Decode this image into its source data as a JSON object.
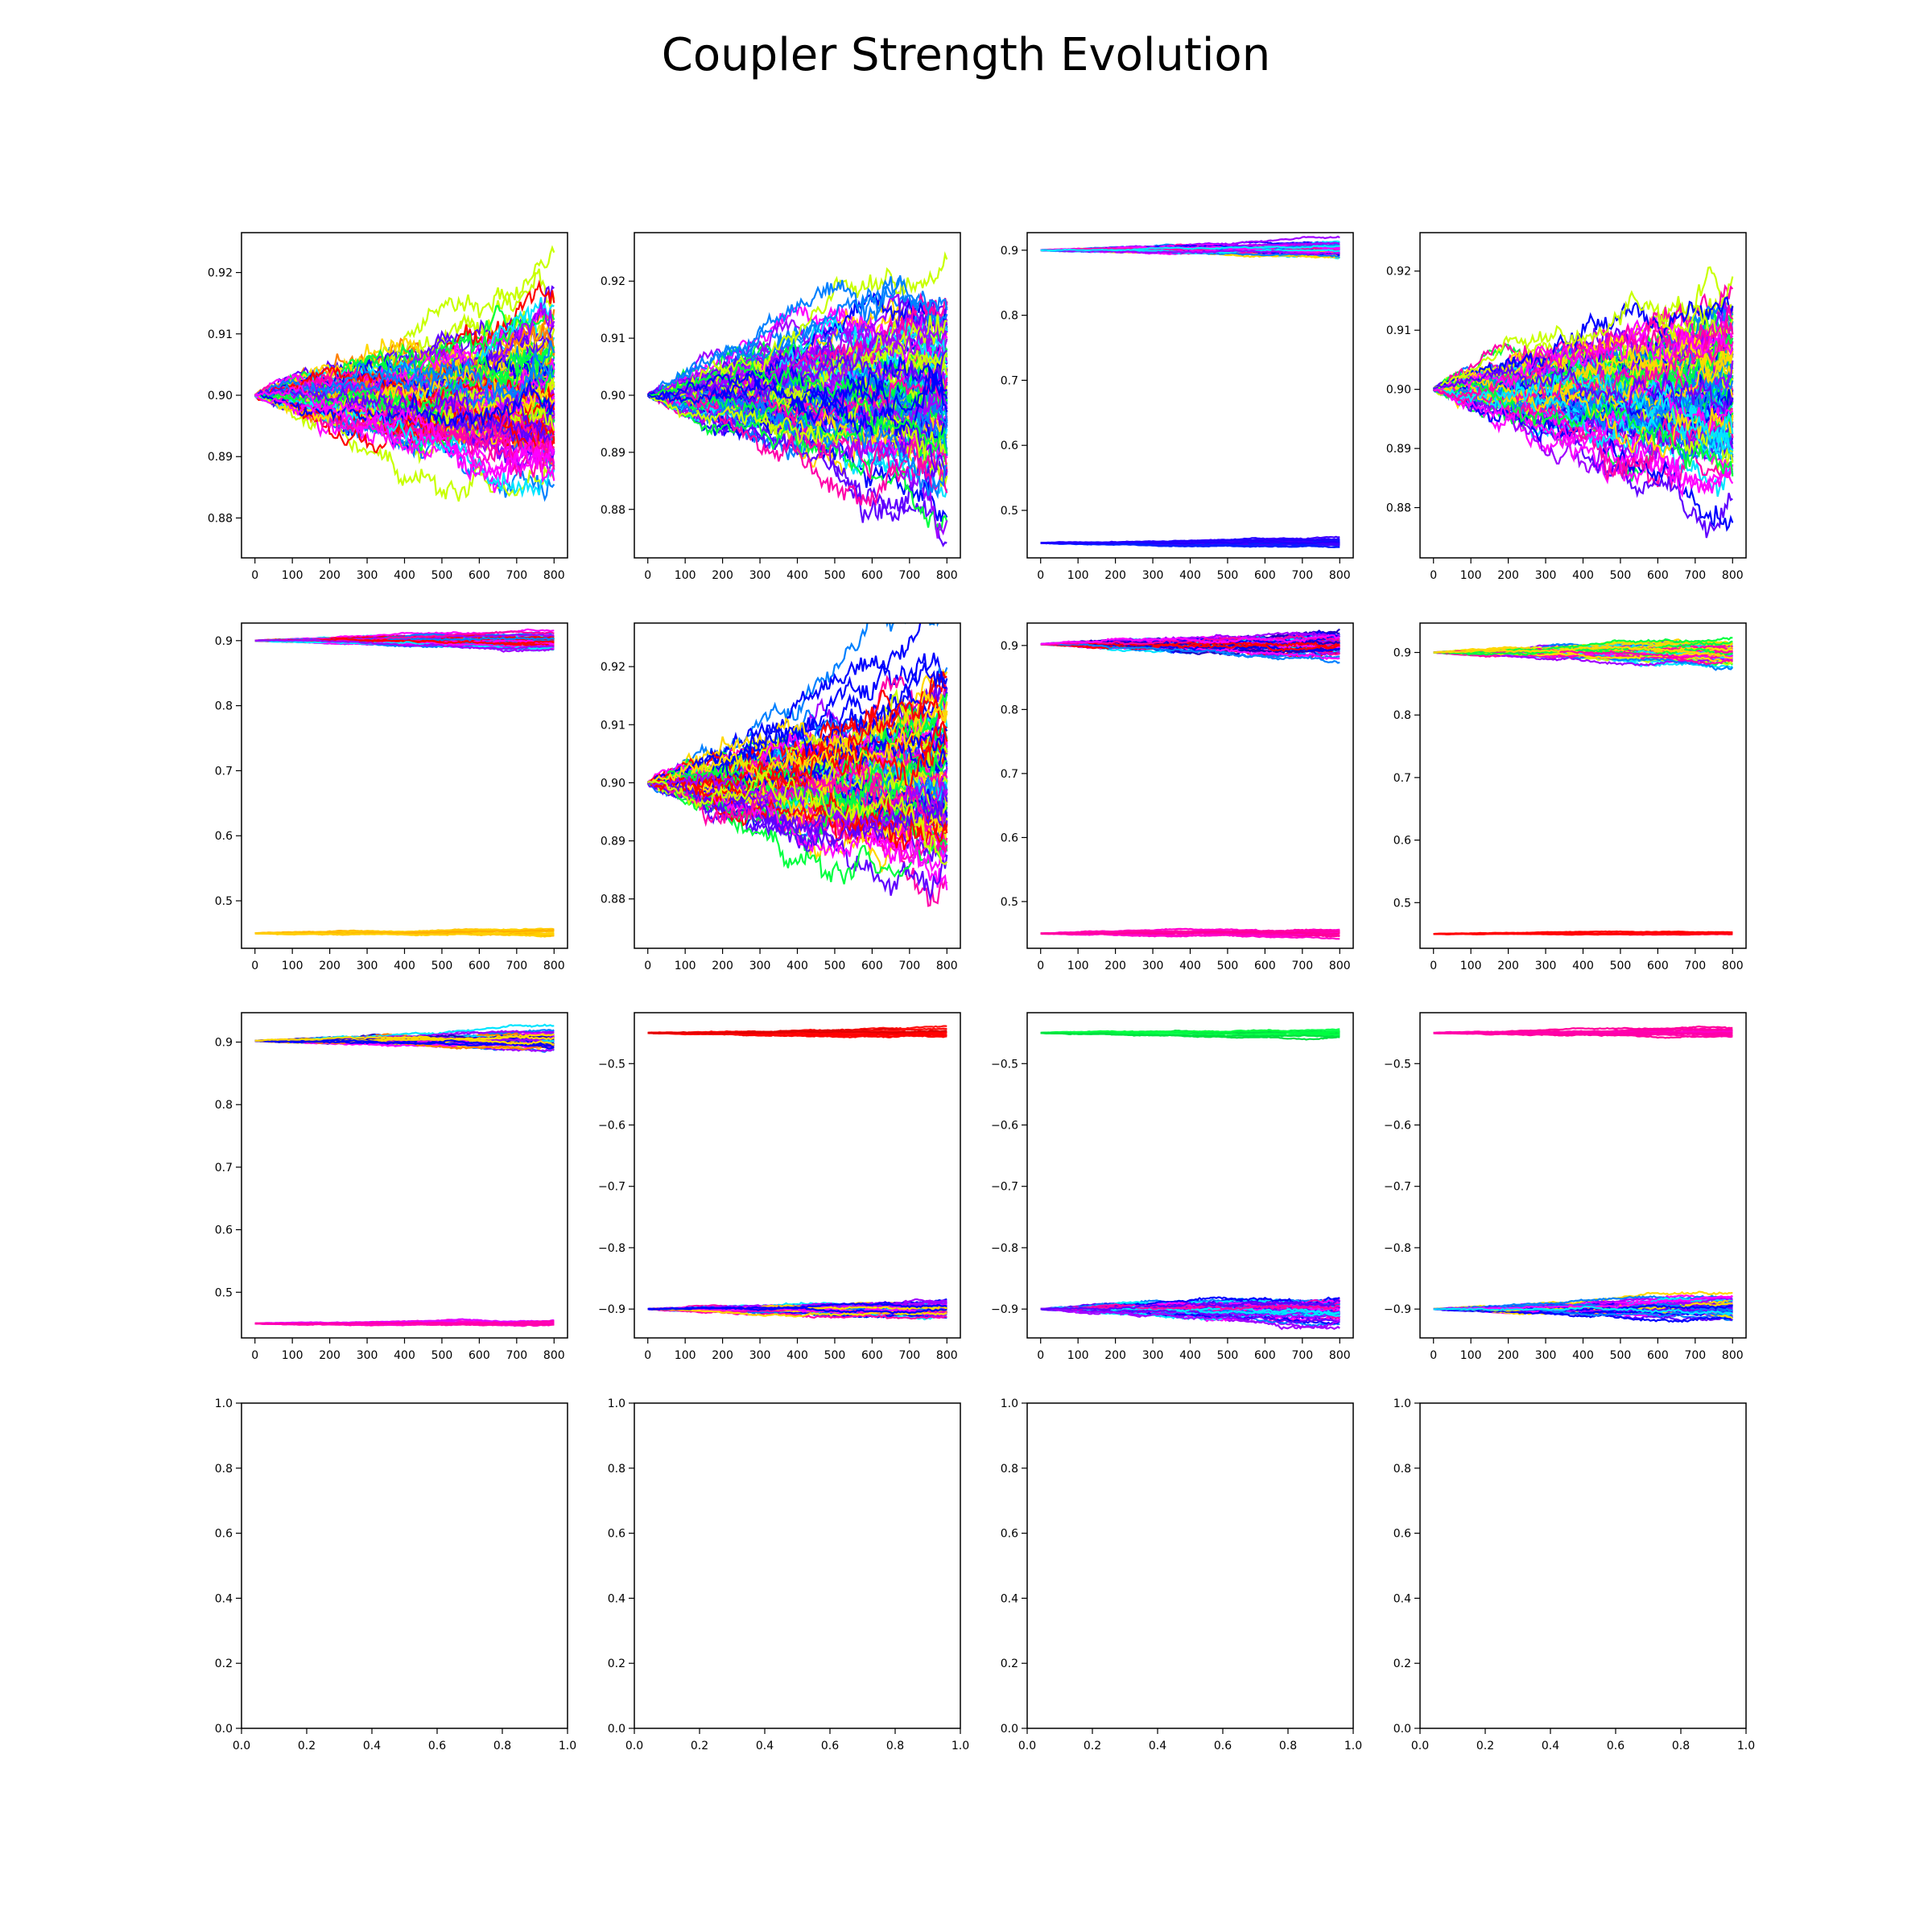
{
  "title": "Coupler Strength Evolution",
  "chart_data": [
    {
      "type": "line",
      "row": 0,
      "col": 0,
      "x": [
        0,
        800
      ],
      "xticks": [
        0,
        100,
        200,
        300,
        400,
        500,
        600,
        700,
        800
      ],
      "yticks": [
        0.88,
        0.89,
        0.9,
        0.91,
        0.92
      ],
      "ylim": [
        0.8735,
        0.9265
      ],
      "bands": [
        {
          "center": 0.9,
          "spread_start": 0.001,
          "spread_end": 0.016,
          "count": 110,
          "colors": [
            "#ff0000",
            "#ff7f00",
            "#ffd700",
            "#c8ff00",
            "#00ff40",
            "#00e5ff",
            "#0080ff",
            "#0000ff",
            "#6000ff",
            "#a000ff",
            "#ff00ff",
            "#ff00aa"
          ]
        }
      ]
    },
    {
      "type": "line",
      "row": 0,
      "col": 1,
      "x": [
        0,
        800
      ],
      "xticks": [
        0,
        100,
        200,
        300,
        400,
        500,
        600,
        700,
        800
      ],
      "yticks": [
        0.88,
        0.89,
        0.9,
        0.91,
        0.92
      ],
      "ylim": [
        0.8715,
        0.9285
      ],
      "bands": [
        {
          "center": 0.9,
          "spread_start": 0.001,
          "spread_end": 0.019,
          "count": 110,
          "colors": [
            "#ffd700",
            "#c8ff00",
            "#00ff40",
            "#00e5ff",
            "#0080ff",
            "#0000ff",
            "#6000ff",
            "#a000ff",
            "#ff00ff",
            "#ff00aa"
          ]
        }
      ]
    },
    {
      "type": "line",
      "row": 0,
      "col": 2,
      "x": [
        0,
        800
      ],
      "xticks": [
        0,
        100,
        200,
        300,
        400,
        500,
        600,
        700,
        800
      ],
      "yticks": [
        0.5,
        0.6,
        0.7,
        0.8,
        0.9
      ],
      "ylim": [
        0.427,
        0.927
      ],
      "bands": [
        {
          "center": 0.9,
          "spread_start": 0.002,
          "spread_end": 0.011,
          "count": 60,
          "colors": [
            "#ffd700",
            "#00e5ff",
            "#0080ff",
            "#0000ff",
            "#a000ff",
            "#ff00ff",
            "#ff00aa"
          ]
        },
        {
          "center": 0.45,
          "spread_start": 0.003,
          "spread_end": 0.007,
          "count": 20,
          "colors": [
            "#2000ff",
            "#4000ff",
            "#0020ff"
          ]
        }
      ]
    },
    {
      "type": "line",
      "row": 0,
      "col": 3,
      "x": [
        0,
        800
      ],
      "xticks": [
        0,
        100,
        200,
        300,
        400,
        500,
        600,
        700,
        800
      ],
      "yticks": [
        0.88,
        0.89,
        0.9,
        0.91,
        0.92
      ],
      "ylim": [
        0.8715,
        0.9265
      ],
      "bands": [
        {
          "center": 0.9,
          "spread_start": 0.001,
          "spread_end": 0.018,
          "count": 110,
          "colors": [
            "#ffd700",
            "#c8ff00",
            "#00ff40",
            "#00e5ff",
            "#0080ff",
            "#0000ff",
            "#6000ff",
            "#a000ff",
            "#ff00ff",
            "#ff00aa"
          ]
        }
      ]
    },
    {
      "type": "line",
      "row": 1,
      "col": 0,
      "x": [
        0,
        800
      ],
      "xticks": [
        0,
        100,
        200,
        300,
        400,
        500,
        600,
        700,
        800
      ],
      "yticks": [
        0.5,
        0.6,
        0.7,
        0.8,
        0.9
      ],
      "ylim": [
        0.427,
        0.927
      ],
      "bands": [
        {
          "center": 0.9,
          "spread_start": 0.002,
          "spread_end": 0.012,
          "count": 60,
          "colors": [
            "#ff0000",
            "#ff7f00",
            "#00e5ff",
            "#0080ff",
            "#a000ff",
            "#ff00ff",
            "#ff00aa"
          ]
        },
        {
          "center": 0.45,
          "spread_start": 0.003,
          "spread_end": 0.007,
          "count": 14,
          "colors": [
            "#ffc000",
            "#ffb000",
            "#ffd000"
          ]
        }
      ]
    },
    {
      "type": "line",
      "row": 1,
      "col": 1,
      "x": [
        0,
        800
      ],
      "xticks": [
        0,
        100,
        200,
        300,
        400,
        500,
        600,
        700,
        800
      ],
      "yticks": [
        0.88,
        0.89,
        0.9,
        0.91,
        0.92
      ],
      "ylim": [
        0.8715,
        0.9275
      ],
      "bands": [
        {
          "center": 0.9,
          "spread_start": 0.001,
          "spread_end": 0.019,
          "count": 110,
          "colors": [
            "#ff0000",
            "#ffd700",
            "#c8ff00",
            "#00ff40",
            "#00e5ff",
            "#0080ff",
            "#0000ff",
            "#6000ff",
            "#a000ff",
            "#ff00ff",
            "#ff00aa"
          ]
        }
      ]
    },
    {
      "type": "line",
      "row": 1,
      "col": 2,
      "x": [
        0,
        800
      ],
      "xticks": [
        0,
        100,
        200,
        300,
        400,
        500,
        600,
        700,
        800
      ],
      "yticks": [
        0.5,
        0.6,
        0.7,
        0.8,
        0.9
      ],
      "ylim": [
        0.427,
        0.935
      ],
      "bands": [
        {
          "center": 0.902,
          "spread_start": 0.002,
          "spread_end": 0.022,
          "count": 60,
          "colors": [
            "#ff0000",
            "#00e5ff",
            "#0080ff",
            "#0000ff",
            "#2000c0",
            "#a000ff",
            "#ff00ff",
            "#ff00aa"
          ]
        },
        {
          "center": 0.45,
          "spread_start": 0.003,
          "spread_end": 0.008,
          "count": 14,
          "colors": [
            "#ff00aa",
            "#ff00cc",
            "#ff0099"
          ]
        }
      ]
    },
    {
      "type": "line",
      "row": 1,
      "col": 3,
      "x": [
        0,
        800
      ],
      "xticks": [
        0,
        100,
        200,
        300,
        400,
        500,
        600,
        700,
        800
      ],
      "yticks": [
        0.5,
        0.6,
        0.7,
        0.8,
        0.9
      ],
      "ylim": [
        0.427,
        0.947
      ],
      "bands": [
        {
          "center": 0.9,
          "spread_start": 0.002,
          "spread_end": 0.02,
          "count": 60,
          "colors": [
            "#ffd700",
            "#c8ff00",
            "#00ff40",
            "#00e5ff",
            "#0080ff",
            "#a000ff",
            "#ff00ff",
            "#ff00aa"
          ]
        },
        {
          "center": 0.45,
          "spread_start": 0.002,
          "spread_end": 0.004,
          "count": 6,
          "colors": [
            "#ff0020",
            "#ff0000"
          ]
        }
      ]
    },
    {
      "type": "line",
      "row": 2,
      "col": 0,
      "x": [
        0,
        800
      ],
      "xticks": [
        0,
        100,
        200,
        300,
        400,
        500,
        600,
        700,
        800
      ],
      "yticks": [
        0.5,
        0.6,
        0.7,
        0.8,
        0.9
      ],
      "ylim": [
        0.427,
        0.947
      ],
      "bands": [
        {
          "center": 0.902,
          "spread_start": 0.002,
          "spread_end": 0.014,
          "count": 60,
          "colors": [
            "#ff7f00",
            "#ffd700",
            "#00e5ff",
            "#0080ff",
            "#0000ff",
            "#2000c0",
            "#a000ff",
            "#ff00ff"
          ]
        },
        {
          "center": 0.45,
          "spread_start": 0.003,
          "spread_end": 0.007,
          "count": 14,
          "colors": [
            "#ff00cc",
            "#ff00aa",
            "#e000ff"
          ]
        }
      ]
    },
    {
      "type": "line",
      "row": 2,
      "col": 1,
      "x": [
        0,
        800
      ],
      "xticks": [
        0,
        100,
        200,
        300,
        400,
        500,
        600,
        700,
        800
      ],
      "yticks": [
        -0.9,
        -0.8,
        -0.7,
        -0.6,
        -0.5
      ],
      "ylim": [
        -0.947,
        -0.417
      ],
      "bands": [
        {
          "center": -0.45,
          "spread_start": 0.003,
          "spread_end": 0.008,
          "count": 14,
          "colors": [
            "#ff0000",
            "#ff1010",
            "#e00000"
          ]
        },
        {
          "center": -0.9,
          "spread_start": 0.002,
          "spread_end": 0.016,
          "count": 60,
          "colors": [
            "#ffd700",
            "#00e5ff",
            "#0080ff",
            "#0000ff",
            "#a000ff",
            "#ff00ff",
            "#ff00aa"
          ]
        }
      ]
    },
    {
      "type": "line",
      "row": 2,
      "col": 2,
      "x": [
        0,
        800
      ],
      "xticks": [
        0,
        100,
        200,
        300,
        400,
        500,
        600,
        700,
        800
      ],
      "yticks": [
        -0.9,
        -0.8,
        -0.7,
        -0.6,
        -0.5
      ],
      "ylim": [
        -0.947,
        -0.417
      ],
      "bands": [
        {
          "center": -0.45,
          "spread_start": 0.003,
          "spread_end": 0.008,
          "count": 14,
          "colors": [
            "#00ff40",
            "#10ff50",
            "#00e040"
          ]
        },
        {
          "center": -0.9,
          "spread_start": 0.002,
          "spread_end": 0.022,
          "count": 60,
          "colors": [
            "#00e5ff",
            "#0080ff",
            "#0000ff",
            "#6000ff",
            "#a000ff",
            "#ff00ff",
            "#ff00aa"
          ]
        }
      ]
    },
    {
      "type": "line",
      "row": 2,
      "col": 3,
      "x": [
        0,
        800
      ],
      "xticks": [
        0,
        100,
        200,
        300,
        400,
        500,
        600,
        700,
        800
      ],
      "yticks": [
        -0.9,
        -0.8,
        -0.7,
        -0.6,
        -0.5
      ],
      "ylim": [
        -0.947,
        -0.417
      ],
      "bands": [
        {
          "center": -0.45,
          "spread_start": 0.003,
          "spread_end": 0.008,
          "count": 14,
          "colors": [
            "#ff00aa",
            "#ff00cc",
            "#ff0099"
          ]
        },
        {
          "center": -0.9,
          "spread_start": 0.002,
          "spread_end": 0.018,
          "count": 60,
          "colors": [
            "#ffd700",
            "#00e5ff",
            "#0080ff",
            "#0000ff",
            "#6000ff",
            "#a000ff",
            "#ff00ff"
          ]
        }
      ]
    },
    {
      "type": "line",
      "row": 3,
      "col": 0,
      "empty": true,
      "xticks": [
        0.0,
        0.2,
        0.4,
        0.6,
        0.8,
        1.0
      ],
      "yticks": [
        0.0,
        0.2,
        0.4,
        0.6,
        0.8,
        1.0
      ],
      "ylim": [
        0,
        1
      ],
      "xlim": [
        0,
        1
      ],
      "bands": []
    },
    {
      "type": "line",
      "row": 3,
      "col": 1,
      "empty": true,
      "xticks": [
        0.0,
        0.2,
        0.4,
        0.6,
        0.8,
        1.0
      ],
      "yticks": [
        0.0,
        0.2,
        0.4,
        0.6,
        0.8,
        1.0
      ],
      "ylim": [
        0,
        1
      ],
      "xlim": [
        0,
        1
      ],
      "bands": []
    },
    {
      "type": "line",
      "row": 3,
      "col": 2,
      "empty": true,
      "xticks": [
        0.0,
        0.2,
        0.4,
        0.6,
        0.8,
        1.0
      ],
      "yticks": [
        0.0,
        0.2,
        0.4,
        0.6,
        0.8,
        1.0
      ],
      "ylim": [
        0,
        1
      ],
      "xlim": [
        0,
        1
      ],
      "bands": []
    },
    {
      "type": "line",
      "row": 3,
      "col": 3,
      "empty": true,
      "xticks": [
        0.0,
        0.2,
        0.4,
        0.6,
        0.8,
        1.0
      ],
      "yticks": [
        0.0,
        0.2,
        0.4,
        0.6,
        0.8,
        1.0
      ],
      "ylim": [
        0,
        1
      ],
      "xlim": [
        0,
        1
      ],
      "bands": []
    }
  ]
}
